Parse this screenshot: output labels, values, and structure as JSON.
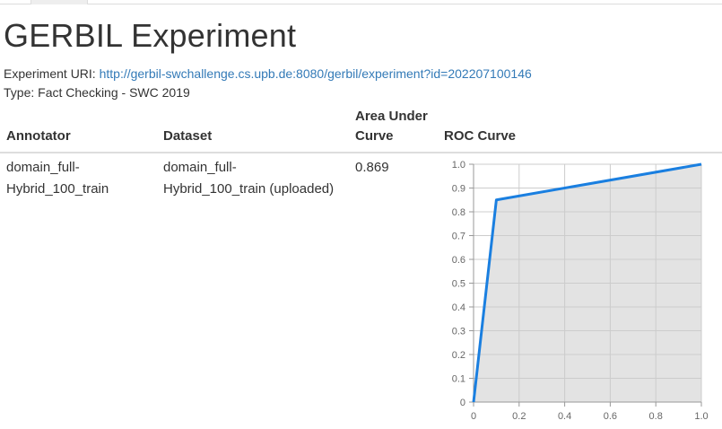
{
  "header": {
    "title": "GERBIL Experiment"
  },
  "experiment": {
    "uri_label": "Experiment URI:",
    "uri": "http://gerbil-swchallenge.cs.upb.de:8080/gerbil/experiment?id=202207100146",
    "type_label": "Type:",
    "type_value": "Fact Checking - SWC 2019"
  },
  "table": {
    "columns": {
      "annotator": "Annotator",
      "dataset": "Dataset",
      "auc_line1": "Area Under",
      "auc_line2": "Curve",
      "roc": "ROC Curve"
    },
    "rows": [
      {
        "annotator_line1": "domain_full-",
        "annotator_line2": "Hybrid_100_train",
        "dataset_line1": "domain_full-",
        "dataset_line2": "Hybrid_100_train (uploaded)",
        "auc": "0.869"
      }
    ]
  },
  "chart_data": {
    "type": "area",
    "title": "",
    "xlabel": "",
    "ylabel": "",
    "xlim": [
      0,
      1
    ],
    "ylim": [
      0,
      1
    ],
    "x_ticks": [
      "0",
      "0.2",
      "0.4",
      "0.6",
      "0.8",
      "1.0"
    ],
    "y_ticks": [
      "0",
      "0.1",
      "0.2",
      "0.3",
      "0.4",
      "0.5",
      "0.6",
      "0.7",
      "0.8",
      "0.9",
      "1.0"
    ],
    "grid": true,
    "series": [
      {
        "points": [
          {
            "x": 0,
            "y": 0
          },
          {
            "x": 0.1,
            "y": 0.85
          },
          {
            "x": 1.0,
            "y": 1.0
          }
        ],
        "color": "#1a7fe0",
        "fill": "#e3e3e3"
      }
    ]
  }
}
